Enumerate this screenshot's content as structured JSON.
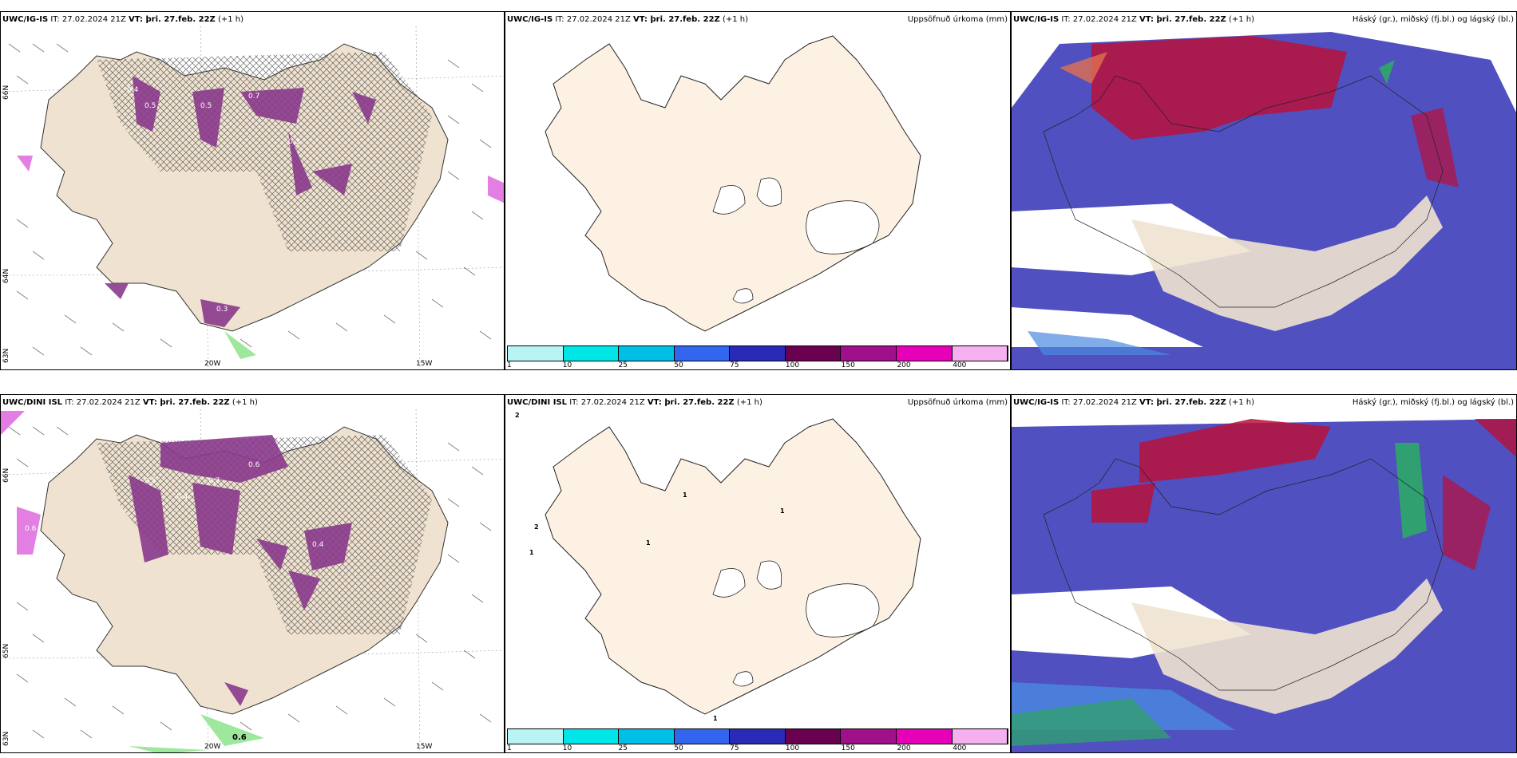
{
  "panels": {
    "r1c1": {
      "model": "UWC/IG-IS",
      "it": " IT: 27.02.2024 21Z ",
      "vt_label": "VT:",
      "vt": " þri. 27.feb. 22Z",
      "lead": " (+1 h)",
      "right_title": ""
    },
    "r1c2": {
      "model": "UWC/IG-IS",
      "it": " IT: 27.02.2024 21Z ",
      "vt_label": "VT:",
      "vt": " þri. 27.feb. 22Z",
      "lead": " (+1 h)",
      "right_title": "Uppsöfnuð úrkoma (mm)"
    },
    "r1c3": {
      "model": "UWC/IG-IS",
      "it": " IT: 27.02.2024 21Z ",
      "vt_label": "VT:",
      "vt": " þri. 27.feb. 22Z",
      "lead": " (+1 h)",
      "right_title": "Háský (gr.), miðský (fj.bl.) og lágský (bl.)"
    },
    "r2c1": {
      "model": "UWC/DINI ISL",
      "it": " IT: 27.02.2024 21Z ",
      "vt_label": "VT:",
      "vt": " þri. 27.feb. 22Z",
      "lead": " (+1 h)",
      "right_title": ""
    },
    "r2c2": {
      "model": "UWC/DINI ISL",
      "it": " IT: 27.02.2024 21Z ",
      "vt_label": "VT:",
      "vt": " þri. 27.feb. 22Z",
      "lead": " (+1 h)",
      "right_title": "Uppsöfnuð úrkoma (mm)"
    },
    "r2c3": {
      "model": "UWC/IG-IS",
      "it": " IT: 27.02.2024 21Z ",
      "vt_label": "VT:",
      "vt": " þri. 27.feb. 22Z",
      "lead": " (+1 h)",
      "right_title": "Háský (gr.), miðský (fj.bl.) og lágský (bl.)"
    }
  },
  "axis_labels": {
    "lon_20w": "20W",
    "lon_15w": "15W",
    "lat_66n": "66N",
    "lat_64n": "64N",
    "lat_63n": "63N",
    "lat_65n": "65N"
  },
  "colorbar": {
    "labels": [
      "1",
      "10",
      "25",
      "50",
      "75",
      "100",
      "150",
      "200",
      "400"
    ],
    "colors": [
      "#b8f4f4",
      "#00e6e6",
      "#00bfe6",
      "#3366ee",
      "#2a2ab8",
      "#6a0050",
      "#a0108a",
      "#e600b8",
      "#f5b0f0"
    ]
  },
  "precip_labels_r2": [
    "2",
    "2",
    "1",
    "1",
    "1",
    "1",
    "1"
  ],
  "colors": {
    "land": "#f0e2d0",
    "land_light": "#fdf1e4",
    "precip": "#8a3a8c",
    "precip_light": "#e070e0",
    "low_cloud": "#5050c0",
    "mid_cloud": "#4a8ae0",
    "high_cloud": "#b8103a"
  }
}
